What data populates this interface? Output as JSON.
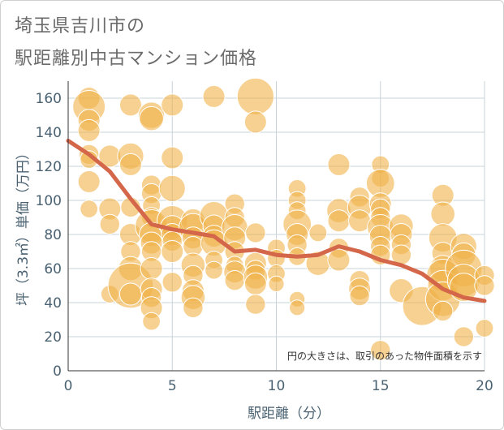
{
  "title_line1": "埼玉県吉川市の",
  "title_line2": "駅距離別中古マンション価格",
  "chart_data": {
    "type": "scatter",
    "xlabel": "駅距離（分）",
    "ylabel": "坪（3.3㎡）単価（万円）",
    "xlim": [
      0,
      20
    ],
    "ylim": [
      0,
      170
    ],
    "xticks": [
      0,
      5,
      10,
      15,
      20
    ],
    "yticks": [
      0,
      20,
      40,
      60,
      80,
      100,
      120,
      140,
      160
    ],
    "grid": true,
    "note": "円の大きさは、取引のあった物件面積を示す",
    "bubble_color": "#f0b24a",
    "line_color": "#d4664a",
    "trend_line": {
      "x": [
        0,
        1,
        2,
        3,
        4,
        5,
        6,
        7,
        8,
        9,
        10,
        11,
        12,
        13,
        14,
        15,
        16,
        17,
        18,
        19,
        20
      ],
      "y": [
        135,
        127,
        117,
        101,
        86,
        83,
        81,
        79,
        70,
        71,
        68,
        67,
        68,
        73,
        70,
        65,
        62,
        57,
        48,
        43,
        41
      ]
    },
    "bubbles": [
      {
        "x": 1,
        "y": 160,
        "s": 0.5
      },
      {
        "x": 1,
        "y": 155,
        "s": 1.0
      },
      {
        "x": 1,
        "y": 147,
        "s": 0.5
      },
      {
        "x": 1,
        "y": 141,
        "s": 0.5
      },
      {
        "x": 1,
        "y": 127,
        "s": 0.4
      },
      {
        "x": 1,
        "y": 124,
        "s": 0.3
      },
      {
        "x": 1,
        "y": 111,
        "s": 0.5
      },
      {
        "x": 1,
        "y": 95,
        "s": 0.3
      },
      {
        "x": 2,
        "y": 126,
        "s": 0.5
      },
      {
        "x": 2,
        "y": 95,
        "s": 0.5
      },
      {
        "x": 2,
        "y": 86,
        "s": 0.4
      },
      {
        "x": 2,
        "y": 45,
        "s": 0.3
      },
      {
        "x": 3,
        "y": 156,
        "s": 0.5
      },
      {
        "x": 3,
        "y": 126,
        "s": 0.7
      },
      {
        "x": 3,
        "y": 121,
        "s": 0.5
      },
      {
        "x": 3,
        "y": 96,
        "s": 0.4
      },
      {
        "x": 3,
        "y": 80,
        "s": 0.5
      },
      {
        "x": 3,
        "y": 70,
        "s": 0.4
      },
      {
        "x": 3,
        "y": 60,
        "s": 0.6
      },
      {
        "x": 3,
        "y": 50,
        "s": 1.6
      },
      {
        "x": 3,
        "y": 45,
        "s": 0.5
      },
      {
        "x": 4,
        "y": 150,
        "s": 0.7
      },
      {
        "x": 4,
        "y": 148,
        "s": 0.6
      },
      {
        "x": 4,
        "y": 109,
        "s": 0.4
      },
      {
        "x": 4,
        "y": 104,
        "s": 0.4
      },
      {
        "x": 4,
        "y": 97,
        "s": 0.3
      },
      {
        "x": 4,
        "y": 90,
        "s": 0.4
      },
      {
        "x": 4,
        "y": 85,
        "s": 1.0
      },
      {
        "x": 4,
        "y": 80,
        "s": 0.6
      },
      {
        "x": 4,
        "y": 75,
        "s": 0.5
      },
      {
        "x": 4,
        "y": 70,
        "s": 0.4
      },
      {
        "x": 4,
        "y": 60,
        "s": 0.5
      },
      {
        "x": 4,
        "y": 48,
        "s": 0.5
      },
      {
        "x": 4,
        "y": 43,
        "s": 0.4
      },
      {
        "x": 4,
        "y": 37,
        "s": 0.5
      },
      {
        "x": 4,
        "y": 29,
        "s": 0.3
      },
      {
        "x": 5,
        "y": 156,
        "s": 0.5
      },
      {
        "x": 5,
        "y": 125,
        "s": 0.5
      },
      {
        "x": 5,
        "y": 107,
        "s": 0.7
      },
      {
        "x": 5,
        "y": 88,
        "s": 0.9
      },
      {
        "x": 5,
        "y": 84,
        "s": 0.6
      },
      {
        "x": 5,
        "y": 80,
        "s": 0.5
      },
      {
        "x": 5,
        "y": 76,
        "s": 0.4
      },
      {
        "x": 5,
        "y": 70,
        "s": 0.5
      },
      {
        "x": 5,
        "y": 52,
        "s": 0.4
      },
      {
        "x": 6,
        "y": 88,
        "s": 0.6
      },
      {
        "x": 6,
        "y": 84,
        "s": 0.8
      },
      {
        "x": 6,
        "y": 78,
        "s": 0.5
      },
      {
        "x": 6,
        "y": 73,
        "s": 0.4
      },
      {
        "x": 6,
        "y": 62,
        "s": 0.6
      },
      {
        "x": 6,
        "y": 56,
        "s": 0.4
      },
      {
        "x": 6,
        "y": 47,
        "s": 0.5
      },
      {
        "x": 6,
        "y": 43,
        "s": 0.6
      },
      {
        "x": 6,
        "y": 37,
        "s": 0.4
      },
      {
        "x": 7,
        "y": 161,
        "s": 0.5
      },
      {
        "x": 7,
        "y": 91,
        "s": 0.8
      },
      {
        "x": 7,
        "y": 85,
        "s": 0.5
      },
      {
        "x": 7,
        "y": 79,
        "s": 0.5
      },
      {
        "x": 7,
        "y": 75,
        "s": 0.7
      },
      {
        "x": 7,
        "y": 65,
        "s": 0.3
      },
      {
        "x": 7,
        "y": 59,
        "s": 0.3
      },
      {
        "x": 8,
        "y": 98,
        "s": 0.4
      },
      {
        "x": 8,
        "y": 90,
        "s": 0.4
      },
      {
        "x": 8,
        "y": 84,
        "s": 0.7
      },
      {
        "x": 8,
        "y": 78,
        "s": 0.5
      },
      {
        "x": 8,
        "y": 70,
        "s": 0.4
      },
      {
        "x": 8,
        "y": 62,
        "s": 0.3
      },
      {
        "x": 8,
        "y": 58,
        "s": 0.5
      },
      {
        "x": 8,
        "y": 53,
        "s": 0.4
      },
      {
        "x": 9,
        "y": 161,
        "s": 1.2
      },
      {
        "x": 9,
        "y": 146,
        "s": 0.5
      },
      {
        "x": 9,
        "y": 81,
        "s": 0.4
      },
      {
        "x": 9,
        "y": 63,
        "s": 0.5
      },
      {
        "x": 9,
        "y": 59,
        "s": 0.4
      },
      {
        "x": 9,
        "y": 55,
        "s": 0.6
      },
      {
        "x": 9,
        "y": 51,
        "s": 0.5
      },
      {
        "x": 9,
        "y": 39,
        "s": 0.4
      },
      {
        "x": 10,
        "y": 72,
        "s": 0.3
      },
      {
        "x": 10,
        "y": 66,
        "s": 0.3
      },
      {
        "x": 10,
        "y": 57,
        "s": 0.3
      },
      {
        "x": 10,
        "y": 51,
        "s": 0.2
      },
      {
        "x": 11,
        "y": 107,
        "s": 0.3
      },
      {
        "x": 11,
        "y": 100,
        "s": 0.3
      },
      {
        "x": 11,
        "y": 94,
        "s": 0.3
      },
      {
        "x": 11,
        "y": 86,
        "s": 0.8
      },
      {
        "x": 11,
        "y": 80,
        "s": 0.5
      },
      {
        "x": 11,
        "y": 74,
        "s": 0.4
      },
      {
        "x": 11,
        "y": 67,
        "s": 0.3
      },
      {
        "x": 11,
        "y": 42,
        "s": 0.2
      },
      {
        "x": 11,
        "y": 37,
        "s": 0.2
      },
      {
        "x": 12,
        "y": 81,
        "s": 0.3
      },
      {
        "x": 12,
        "y": 63,
        "s": 0.6
      },
      {
        "x": 13,
        "y": 121,
        "s": 0.5
      },
      {
        "x": 13,
        "y": 94,
        "s": 0.6
      },
      {
        "x": 13,
        "y": 88,
        "s": 0.5
      },
      {
        "x": 13,
        "y": 72,
        "s": 0.4
      },
      {
        "x": 13,
        "y": 65,
        "s": 0.5
      },
      {
        "x": 14,
        "y": 102,
        "s": 0.4
      },
      {
        "x": 14,
        "y": 96,
        "s": 0.6
      },
      {
        "x": 14,
        "y": 88,
        "s": 0.5
      },
      {
        "x": 14,
        "y": 53,
        "s": 0.4
      },
      {
        "x": 14,
        "y": 48,
        "s": 0.5
      },
      {
        "x": 14,
        "y": 44,
        "s": 0.4
      },
      {
        "x": 15,
        "y": 121,
        "s": 0.3
      },
      {
        "x": 15,
        "y": 113,
        "s": 0.3
      },
      {
        "x": 15,
        "y": 110,
        "s": 0.8
      },
      {
        "x": 15,
        "y": 98,
        "s": 0.5
      },
      {
        "x": 15,
        "y": 95,
        "s": 0.4
      },
      {
        "x": 15,
        "y": 90,
        "s": 0.4
      },
      {
        "x": 15,
        "y": 84,
        "s": 0.7
      },
      {
        "x": 15,
        "y": 79,
        "s": 0.5
      },
      {
        "x": 15,
        "y": 73,
        "s": 0.4
      },
      {
        "x": 15,
        "y": 68,
        "s": 0.4
      },
      {
        "x": 15,
        "y": 12,
        "s": 0.4
      },
      {
        "x": 16,
        "y": 85,
        "s": 0.6
      },
      {
        "x": 16,
        "y": 80,
        "s": 0.5
      },
      {
        "x": 16,
        "y": 74,
        "s": 0.4
      },
      {
        "x": 16,
        "y": 68,
        "s": 0.4
      },
      {
        "x": 16,
        "y": 47,
        "s": 0.6
      },
      {
        "x": 17,
        "y": 38,
        "s": 1.3
      },
      {
        "x": 18,
        "y": 103,
        "s": 0.5
      },
      {
        "x": 18,
        "y": 92,
        "s": 0.6
      },
      {
        "x": 18,
        "y": 78,
        "s": 0.8
      },
      {
        "x": 18,
        "y": 69,
        "s": 0.5
      },
      {
        "x": 18,
        "y": 60,
        "s": 0.7
      },
      {
        "x": 18,
        "y": 56,
        "s": 1.0
      },
      {
        "x": 18,
        "y": 50,
        "s": 0.9
      },
      {
        "x": 18,
        "y": 42,
        "s": 1.1
      },
      {
        "x": 18,
        "y": 35,
        "s": 0.4
      },
      {
        "x": 19,
        "y": 73,
        "s": 0.7
      },
      {
        "x": 19,
        "y": 68,
        "s": 0.6
      },
      {
        "x": 19,
        "y": 60,
        "s": 1.2
      },
      {
        "x": 19,
        "y": 53,
        "s": 1.0
      },
      {
        "x": 19,
        "y": 49,
        "s": 0.8
      },
      {
        "x": 19,
        "y": 20,
        "s": 0.4
      },
      {
        "x": 20,
        "y": 56,
        "s": 0.4
      },
      {
        "x": 20,
        "y": 50,
        "s": 0.4
      },
      {
        "x": 20,
        "y": 25,
        "s": 0.3
      }
    ]
  }
}
